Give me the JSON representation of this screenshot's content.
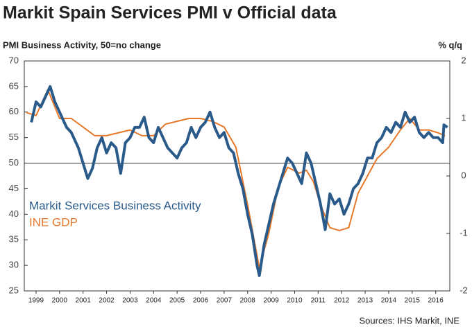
{
  "chart_data": {
    "type": "line",
    "title": "Markit Spain Services PMI v Official data",
    "y_axis_label": "PMI Business Activity, 50=no change",
    "y2_axis_label": "% q/q",
    "source": "Sources: IHS Markit, INE",
    "xlim": [
      1999,
      2017.1
    ],
    "xticks": [
      {
        "value": 1999.5,
        "label": "1999"
      },
      {
        "value": 2000.5,
        "label": "2000"
      },
      {
        "value": 2001.5,
        "label": "2001"
      },
      {
        "value": 2002.5,
        "label": "2002"
      },
      {
        "value": 2003.5,
        "label": "2003"
      },
      {
        "value": 2004.5,
        "label": "2004"
      },
      {
        "value": 2005.5,
        "label": "2005"
      },
      {
        "value": 2006.5,
        "label": "2006"
      },
      {
        "value": 2007.5,
        "label": "2007"
      },
      {
        "value": 2008.5,
        "label": "2008"
      },
      {
        "value": 2009.5,
        "label": "2009"
      },
      {
        "value": 2010.5,
        "label": "2010"
      },
      {
        "value": 2011.5,
        "label": "2011"
      },
      {
        "value": 2012.5,
        "label": "2012"
      },
      {
        "value": 2013.5,
        "label": "2013"
      },
      {
        "value": 2014.5,
        "label": "2014"
      },
      {
        "value": 2015.5,
        "label": "2015"
      },
      {
        "value": 2016.5,
        "label": "2016"
      }
    ],
    "ylim": [
      25,
      70
    ],
    "yticks": [
      25,
      30,
      35,
      40,
      45,
      50,
      55,
      60,
      65,
      70
    ],
    "y2lim": [
      -2,
      2
    ],
    "y2ticks": [
      -2,
      -1,
      0,
      1,
      2
    ],
    "reference_line": 50,
    "series": [
      {
        "name": "Markit Services Business Activity",
        "color": "#2a5a8a",
        "axis": "y",
        "x": [
          1999.3,
          1999.5,
          1999.7,
          1999.9,
          2000.1,
          2000.3,
          2000.5,
          2000.8,
          2001.0,
          2001.3,
          2001.5,
          2001.7,
          2001.9,
          2002.1,
          2002.3,
          2002.5,
          2002.7,
          2002.9,
          2003.1,
          2003.3,
          2003.5,
          2003.7,
          2003.9,
          2004.1,
          2004.3,
          2004.5,
          2004.7,
          2004.9,
          2005.1,
          2005.3,
          2005.5,
          2005.7,
          2005.9,
          2006.1,
          2006.3,
          2006.5,
          2006.7,
          2006.9,
          2007.1,
          2007.3,
          2007.5,
          2007.7,
          2007.9,
          2008.1,
          2008.3,
          2008.5,
          2008.7,
          2008.9,
          2009.0,
          2009.2,
          2009.4,
          2009.6,
          2009.8,
          2010.0,
          2010.2,
          2010.4,
          2010.6,
          2010.8,
          2011.0,
          2011.2,
          2011.4,
          2011.6,
          2011.8,
          2012.0,
          2012.2,
          2012.4,
          2012.6,
          2012.8,
          2013.0,
          2013.2,
          2013.4,
          2013.6,
          2013.8,
          2014.0,
          2014.2,
          2014.4,
          2014.6,
          2014.8,
          2015.0,
          2015.2,
          2015.4,
          2015.6,
          2015.8,
          2016.0,
          2016.2,
          2016.4,
          2016.6,
          2016.8,
          2016.85,
          2017.0
        ],
        "values": [
          58,
          62,
          61,
          63,
          65,
          62,
          60,
          57,
          56,
          53,
          50,
          47,
          49,
          53,
          55,
          52,
          54,
          53,
          48,
          54,
          55,
          57,
          57,
          59,
          55,
          54,
          57,
          55,
          53,
          52,
          51,
          53,
          54,
          57,
          55,
          57,
          58,
          60,
          57,
          55,
          56,
          53,
          52,
          48,
          45,
          40,
          36,
          30,
          28,
          34,
          38,
          42,
          45,
          48,
          51,
          50,
          48,
          46,
          52,
          50,
          46,
          42,
          37,
          44,
          42,
          43,
          40,
          42,
          45,
          46,
          48,
          51,
          51,
          54,
          55,
          57,
          56,
          58,
          57,
          60,
          58,
          59,
          56,
          55,
          56,
          55,
          55,
          54,
          57.5,
          57
        ]
      },
      {
        "name": "INE GDP",
        "color": "#e8782a",
        "axis": "y2",
        "x": [
          1999.1,
          1999.5,
          2000.0,
          2000.5,
          2001.0,
          2001.5,
          2002.0,
          2002.5,
          2003.0,
          2003.5,
          2004.0,
          2004.5,
          2005.0,
          2005.5,
          2006.0,
          2006.5,
          2007.0,
          2007.5,
          2008.0,
          2008.5,
          2009.0,
          2009.4,
          2009.8,
          2010.2,
          2010.7,
          2011.0,
          2011.3,
          2011.6,
          2012.0,
          2012.4,
          2012.8,
          2013.2,
          2013.6,
          2014.0,
          2014.5,
          2015.0,
          2015.4,
          2015.8,
          2016.2,
          2016.6,
          2016.9
        ],
        "values": [
          1.1,
          1.05,
          1.5,
          1.0,
          1.0,
          0.85,
          0.7,
          0.7,
          0.75,
          0.8,
          0.7,
          0.7,
          0.9,
          0.95,
          1.0,
          1.0,
          0.95,
          0.85,
          0.5,
          -0.5,
          -1.6,
          -1.0,
          -0.2,
          0.15,
          0.05,
          0.1,
          -0.1,
          -0.5,
          -0.9,
          -0.95,
          -0.9,
          -0.3,
          0.0,
          0.3,
          0.5,
          0.8,
          1.0,
          0.8,
          0.8,
          0.75,
          0.7
        ]
      }
    ]
  }
}
